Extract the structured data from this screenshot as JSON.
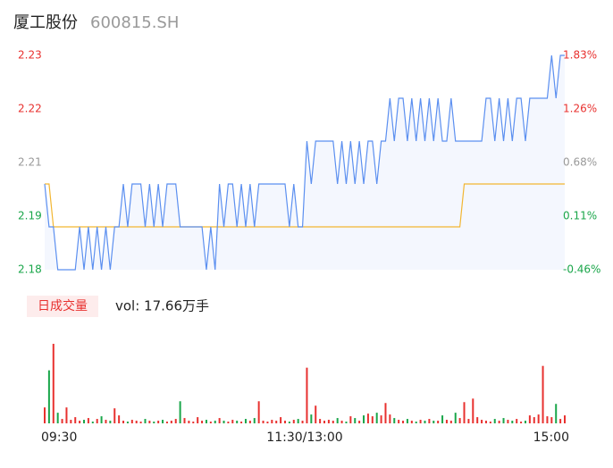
{
  "header": {
    "name": "厦工股份",
    "code": "600815.SH"
  },
  "chart_data": [
    {
      "type": "line",
      "ylim": [
        2.18,
        2.23
      ],
      "yticks": [
        2.23,
        {
          "value": 2.2175,
          "label": "2.22"
        },
        {
          "value": 2.205,
          "label": "2.21"
        },
        {
          "value": 2.1925,
          "label": "2.19"
        },
        2.18
      ],
      "ytick_colors": [
        "#e8312f",
        "#e8312f",
        "#999999",
        "#1aa64a",
        "#1aa64a"
      ],
      "y2lim": [
        -0.46,
        1.83
      ],
      "y2ticks": [
        {
          "value": 1.83,
          "label": "1.83%"
        },
        {
          "value": 1.2575,
          "label": "1.26%"
        },
        {
          "value": 0.685,
          "label": "0.68%"
        },
        {
          "value": 0.1125,
          "label": "0.11%"
        },
        {
          "value": -0.46,
          "label": "-0.46%"
        }
      ],
      "xlim": [
        0,
        119
      ],
      "area_color": "#f4f7fe",
      "series": [
        {
          "color": "#5b8ff0",
          "values": [
            2.2,
            2.19,
            2.19,
            2.18,
            2.18,
            2.18,
            2.18,
            2.18,
            2.19,
            2.18,
            2.19,
            2.18,
            2.19,
            2.18,
            2.19,
            2.18,
            2.19,
            2.19,
            2.2,
            2.19,
            2.2,
            2.2,
            2.2,
            2.19,
            2.2,
            2.19,
            2.2,
            2.19,
            2.2,
            2.2,
            2.2,
            2.19,
            2.19,
            2.19,
            2.19,
            2.19,
            2.19,
            2.18,
            2.19,
            2.18,
            2.2,
            2.19,
            2.2,
            2.2,
            2.19,
            2.2,
            2.19,
            2.2,
            2.19,
            2.2,
            2.2,
            2.2,
            2.2,
            2.2,
            2.2,
            2.2,
            2.19,
            2.2,
            2.19,
            2.19,
            2.21,
            2.2,
            2.21,
            2.21,
            2.21,
            2.21,
            2.21,
            2.2,
            2.21,
            2.2,
            2.21,
            2.2,
            2.21,
            2.2,
            2.21,
            2.21,
            2.2,
            2.21,
            2.21,
            2.22,
            2.21,
            2.22,
            2.22,
            2.21,
            2.22,
            2.21,
            2.22,
            2.21,
            2.22,
            2.21,
            2.22,
            2.21,
            2.21,
            2.22,
            2.21,
            2.21,
            2.21,
            2.21,
            2.21,
            2.21,
            2.21,
            2.22,
            2.22,
            2.21,
            2.22,
            2.21,
            2.22,
            2.21,
            2.22,
            2.22,
            2.21,
            2.22,
            2.22,
            2.22,
            2.22,
            2.22,
            2.23,
            2.22,
            2.23,
            2.23
          ]
        },
        {
          "color": "#f2b632",
          "values": [
            2.2,
            2.2,
            2.19,
            2.19,
            2.19,
            2.19,
            2.19,
            2.19,
            2.19,
            2.19,
            2.19,
            2.19,
            2.19,
            2.19,
            2.19,
            2.19,
            2.19,
            2.19,
            2.19,
            2.19,
            2.19,
            2.19,
            2.19,
            2.19,
            2.19,
            2.19,
            2.19,
            2.19,
            2.19,
            2.19,
            2.19,
            2.19,
            2.19,
            2.19,
            2.19,
            2.19,
            2.19,
            2.19,
            2.19,
            2.19,
            2.19,
            2.19,
            2.19,
            2.19,
            2.19,
            2.19,
            2.19,
            2.19,
            2.19,
            2.19,
            2.19,
            2.19,
            2.19,
            2.19,
            2.19,
            2.19,
            2.19,
            2.19,
            2.19,
            2.19,
            2.19,
            2.19,
            2.19,
            2.19,
            2.19,
            2.19,
            2.19,
            2.19,
            2.19,
            2.19,
            2.19,
            2.19,
            2.19,
            2.19,
            2.19,
            2.19,
            2.19,
            2.19,
            2.19,
            2.19,
            2.19,
            2.19,
            2.19,
            2.19,
            2.19,
            2.19,
            2.19,
            2.19,
            2.19,
            2.19,
            2.19,
            2.19,
            2.19,
            2.19,
            2.19,
            2.19,
            2.2,
            2.2,
            2.2,
            2.2,
            2.2,
            2.2,
            2.2,
            2.2,
            2.2,
            2.2,
            2.2,
            2.2,
            2.2,
            2.2,
            2.2,
            2.2,
            2.2,
            2.2,
            2.2,
            2.2,
            2.2,
            2.2,
            2.2,
            2.2
          ]
        }
      ]
    },
    {
      "type": "bar",
      "legend": "日成交量",
      "vol_label": "vol: 17.66万手",
      "ylim": [
        0,
        9500
      ],
      "xlim": [
        0,
        119
      ],
      "xticks": [
        {
          "value": 0,
          "label": "09:30"
        },
        {
          "value": 59.5,
          "label": "11:30/13:00"
        },
        {
          "value": 119,
          "label": "15:00"
        }
      ],
      "up_color": "#e8312f",
      "down_color": "#1aa64a",
      "values": [
        1800,
        6000,
        9000,
        1200,
        500,
        1800,
        400,
        700,
        300,
        400,
        600,
        200,
        500,
        800,
        400,
        300,
        1700,
        900,
        300,
        200,
        400,
        300,
        200,
        500,
        300,
        200,
        300,
        400,
        200,
        300,
        500,
        2500,
        600,
        300,
        200,
        700,
        300,
        400,
        200,
        300,
        600,
        300,
        200,
        400,
        300,
        200,
        500,
        300,
        600,
        2500,
        300,
        200,
        400,
        300,
        700,
        300,
        200,
        400,
        500,
        300,
        6300,
        1000,
        2000,
        500,
        300,
        400,
        300,
        600,
        300,
        200,
        800,
        600,
        300,
        900,
        1100,
        800,
        1200,
        900,
        2300,
        1000,
        600,
        400,
        300,
        500,
        300,
        200,
        400,
        300,
        500,
        300,
        300,
        900,
        400,
        300,
        1200,
        600,
        2400,
        500,
        2800,
        700,
        400,
        300,
        200,
        500,
        300,
        600,
        400,
        300,
        500,
        200,
        300,
        900,
        700,
        1000,
        6500,
        800,
        700,
        2200,
        500,
        900
      ]
    }
  ]
}
